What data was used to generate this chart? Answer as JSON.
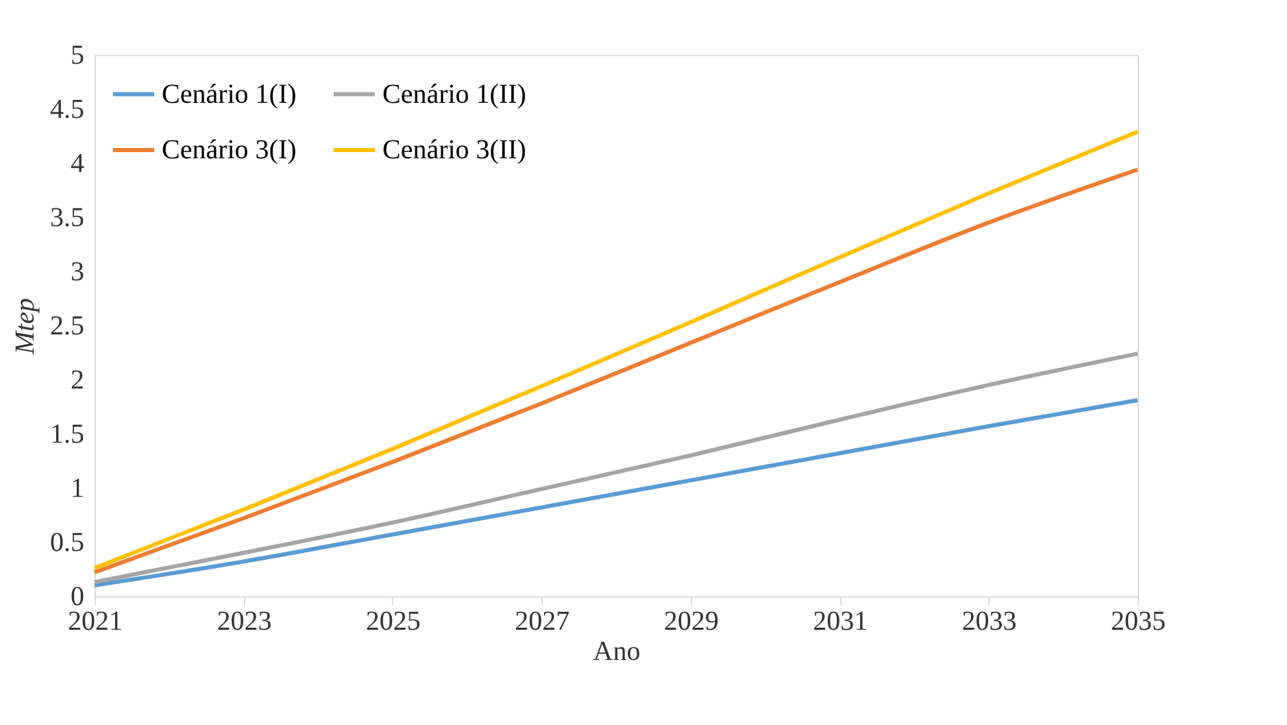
{
  "chart_data": {
    "type": "line",
    "xlabel": "Ano",
    "ylabel": "Mtep",
    "x": [
      2021,
      2023,
      2025,
      2027,
      2029,
      2031,
      2033,
      2035
    ],
    "series": [
      {
        "name": "Cenário 1(I)",
        "color": "#5b9bd5",
        "values": [
          0.1,
          0.32,
          0.57,
          0.82,
          1.07,
          1.32,
          1.57,
          1.81
        ]
      },
      {
        "name": "Cenário 3(I)",
        "color": "#ed7d31",
        "values": [
          0.22,
          0.72,
          1.24,
          1.78,
          2.34,
          2.9,
          3.45,
          3.94
        ]
      },
      {
        "name": "Cenário 1(II)",
        "color": "#a5a5a5",
        "values": [
          0.13,
          0.4,
          0.68,
          0.99,
          1.3,
          1.63,
          1.95,
          2.24
        ]
      },
      {
        "name": "Cenário 3(II)",
        "color": "#ffc000",
        "values": [
          0.26,
          0.8,
          1.36,
          1.94,
          2.53,
          3.13,
          3.72,
          4.29
        ]
      }
    ],
    "xlim": [
      2021,
      2035
    ],
    "xticks": [
      2021,
      2023,
      2025,
      2027,
      2029,
      2031,
      2033,
      2035
    ],
    "ylim": [
      0,
      5
    ],
    "yticks": [
      0,
      0.5,
      1,
      1.5,
      2,
      2.5,
      3,
      3.5,
      4,
      4.5,
      5
    ],
    "grid": false,
    "legend": "top left",
    "marker": "none",
    "line_style": "solid"
  }
}
